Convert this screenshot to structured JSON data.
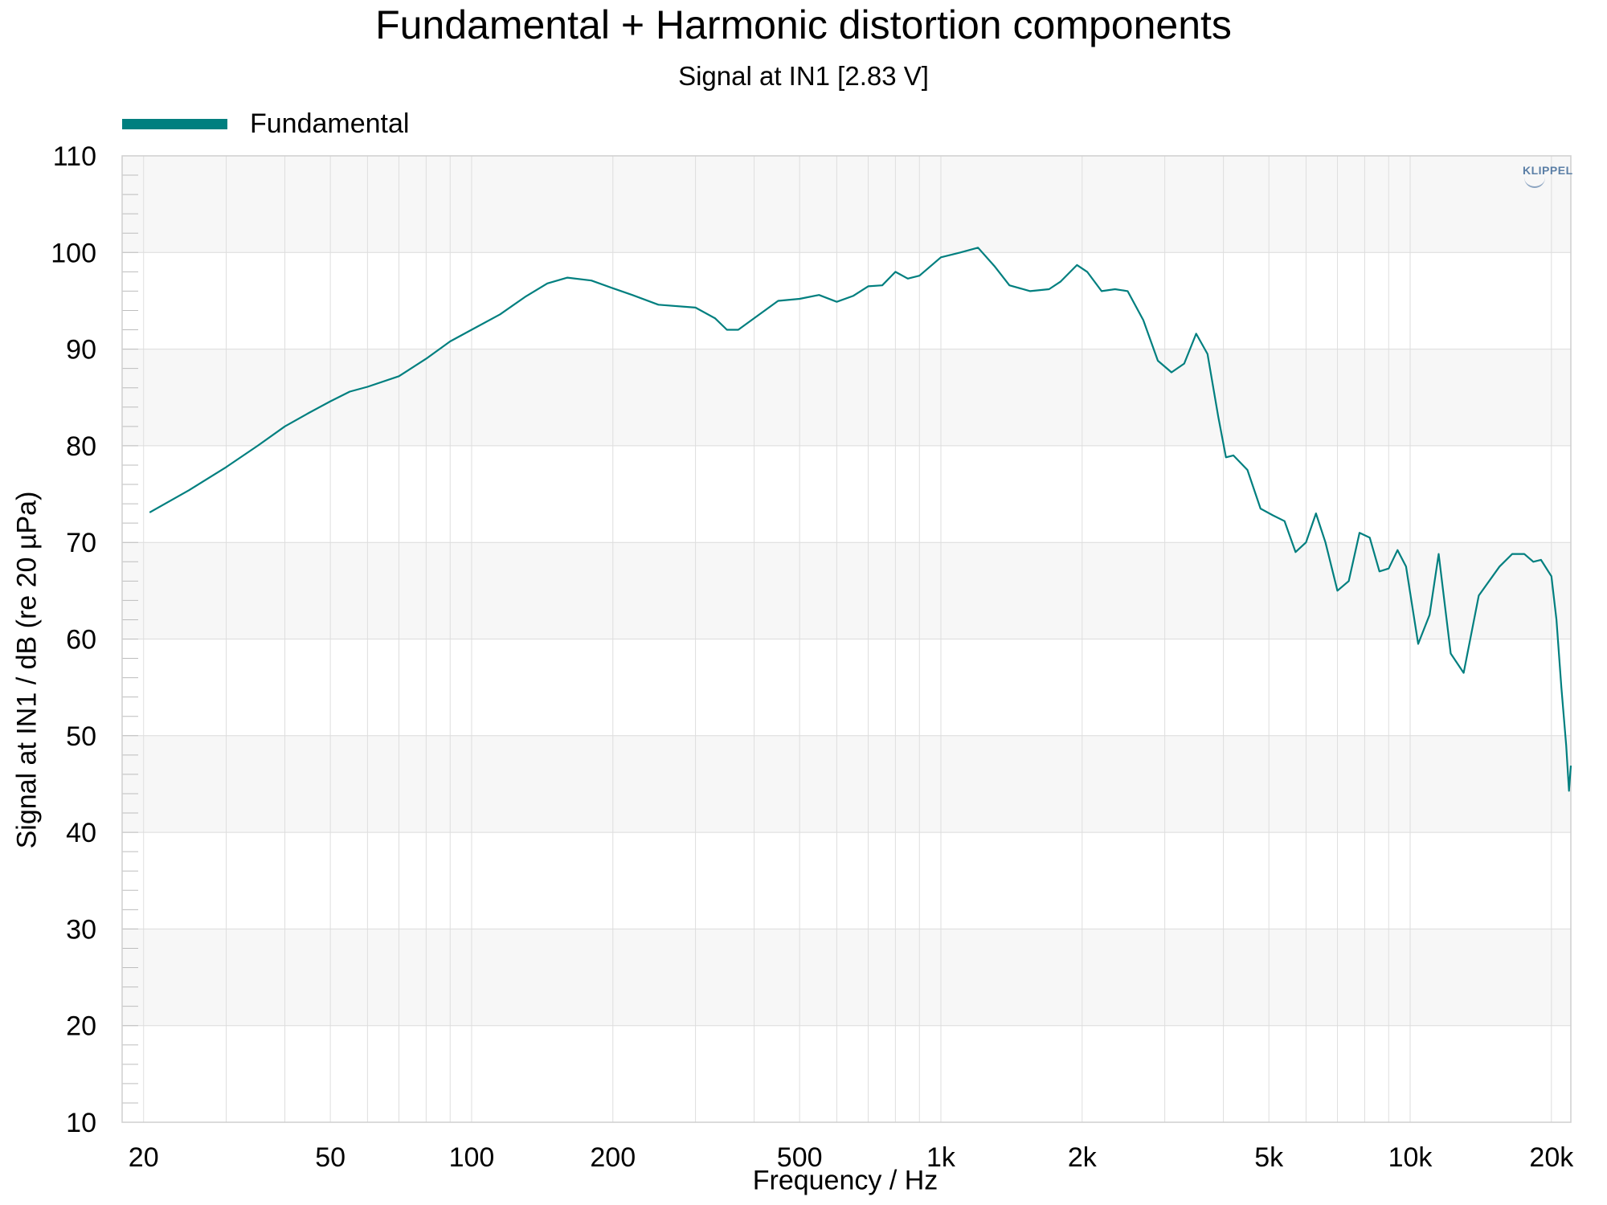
{
  "chart_data": {
    "type": "line",
    "title": "Fundamental + Harmonic distortion components",
    "subtitle": "Signal at IN1 [2.83 V]",
    "xlabel": "Frequency / Hz",
    "ylabel": "Signal at IN1 / dB (re 20 µPa)",
    "x_scale": "log",
    "xlim": [
      18,
      22000
    ],
    "ylim": [
      10,
      110
    ],
    "x_ticks": [
      {
        "value": 20,
        "label": "20"
      },
      {
        "value": 50,
        "label": "50"
      },
      {
        "value": 100,
        "label": "100"
      },
      {
        "value": 200,
        "label": "200"
      },
      {
        "value": 500,
        "label": "500"
      },
      {
        "value": 1000,
        "label": "1k"
      },
      {
        "value": 2000,
        "label": "2k"
      },
      {
        "value": 5000,
        "label": "5k"
      },
      {
        "value": 10000,
        "label": "10k"
      },
      {
        "value": 20000,
        "label": "20k"
      }
    ],
    "y_ticks": [
      10,
      20,
      30,
      40,
      50,
      60,
      70,
      80,
      90,
      100,
      110
    ],
    "grid": true,
    "legend_position": "top-left",
    "watermark": "KLIPPEL",
    "series": [
      {
        "name": "Fundamental",
        "color": "#007f7f",
        "points": [
          [
            20.6,
            73.1
          ],
          [
            25,
            75.4
          ],
          [
            30,
            77.8
          ],
          [
            35,
            80.0
          ],
          [
            40,
            82.0
          ],
          [
            45,
            83.4
          ],
          [
            50,
            84.6
          ],
          [
            55,
            85.6
          ],
          [
            60,
            86.1
          ],
          [
            70,
            87.2
          ],
          [
            80,
            89.0
          ],
          [
            90,
            90.8
          ],
          [
            100,
            92.0
          ],
          [
            115,
            93.6
          ],
          [
            130,
            95.4
          ],
          [
            145,
            96.8
          ],
          [
            160,
            97.4
          ],
          [
            180,
            97.1
          ],
          [
            200,
            96.3
          ],
          [
            220,
            95.6
          ],
          [
            250,
            94.6
          ],
          [
            300,
            94.3
          ],
          [
            330,
            93.2
          ],
          [
            350,
            92.0
          ],
          [
            370,
            92.0
          ],
          [
            400,
            93.2
          ],
          [
            450,
            95.0
          ],
          [
            500,
            95.2
          ],
          [
            550,
            95.6
          ],
          [
            600,
            94.9
          ],
          [
            650,
            95.5
          ],
          [
            700,
            96.5
          ],
          [
            750,
            96.6
          ],
          [
            800,
            98.0
          ],
          [
            850,
            97.3
          ],
          [
            900,
            97.6
          ],
          [
            1000,
            99.5
          ],
          [
            1100,
            100.0
          ],
          [
            1200,
            100.5
          ],
          [
            1300,
            98.6
          ],
          [
            1400,
            96.6
          ],
          [
            1550,
            96.0
          ],
          [
            1700,
            96.2
          ],
          [
            1800,
            97.0
          ],
          [
            1950,
            98.7
          ],
          [
            2050,
            98.0
          ],
          [
            2200,
            96.0
          ],
          [
            2350,
            96.2
          ],
          [
            2500,
            96.0
          ],
          [
            2700,
            93.0
          ],
          [
            2900,
            88.8
          ],
          [
            3100,
            87.6
          ],
          [
            3300,
            88.5
          ],
          [
            3500,
            91.6
          ],
          [
            3700,
            89.5
          ],
          [
            3900,
            83.0
          ],
          [
            4050,
            78.8
          ],
          [
            4200,
            79.0
          ],
          [
            4500,
            77.5
          ],
          [
            4800,
            73.5
          ],
          [
            5100,
            72.8
          ],
          [
            5400,
            72.2
          ],
          [
            5700,
            69.0
          ],
          [
            6000,
            70.0
          ],
          [
            6300,
            73.0
          ],
          [
            6600,
            70.0
          ],
          [
            7000,
            65.0
          ],
          [
            7400,
            66.0
          ],
          [
            7800,
            71.0
          ],
          [
            8200,
            70.5
          ],
          [
            8600,
            67.0
          ],
          [
            9000,
            67.3
          ],
          [
            9400,
            69.2
          ],
          [
            9800,
            67.5
          ],
          [
            10400,
            59.5
          ],
          [
            11000,
            62.5
          ],
          [
            11500,
            68.8
          ],
          [
            12200,
            58.5
          ],
          [
            13000,
            56.5
          ],
          [
            14000,
            64.5
          ],
          [
            15500,
            67.5
          ],
          [
            16500,
            68.8
          ],
          [
            17500,
            68.8
          ],
          [
            18300,
            68.0
          ],
          [
            19000,
            68.2
          ],
          [
            20000,
            66.5
          ],
          [
            20500,
            62.0
          ],
          [
            21000,
            55.0
          ],
          [
            21500,
            49.0
          ],
          [
            21800,
            44.3
          ],
          [
            22000,
            46.9
          ]
        ]
      }
    ]
  }
}
